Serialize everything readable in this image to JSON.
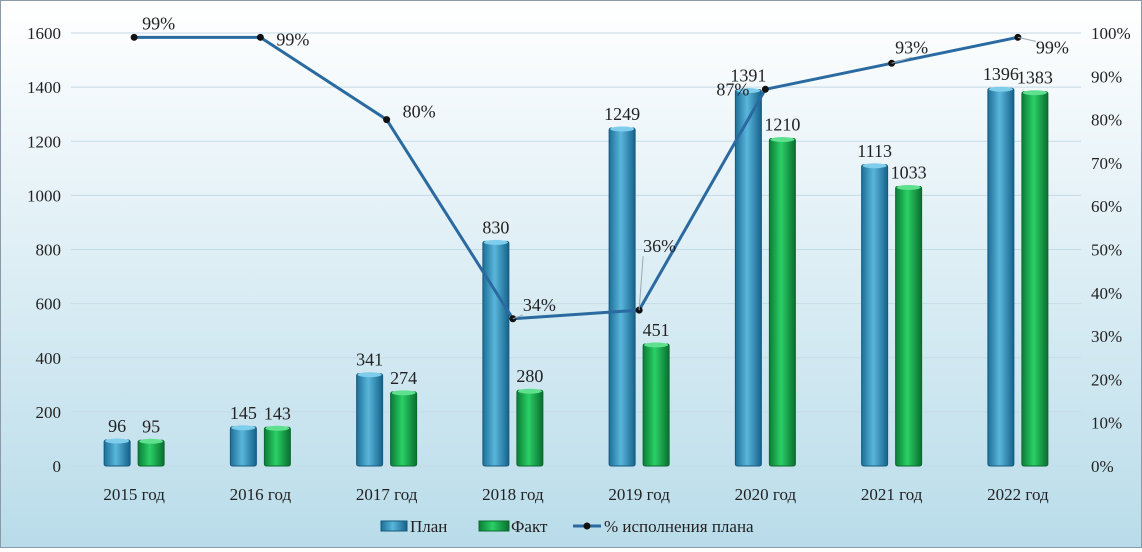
{
  "chart_data": {
    "type": "bar",
    "categories": [
      "2015 год",
      "2016 год",
      "2017 год",
      "2018 год",
      "2019 год",
      "2020 год",
      "2021 год",
      "2022 год"
    ],
    "series": [
      {
        "name": "План",
        "type": "bar",
        "color": "#3a9ac9",
        "values": [
          96,
          145,
          341,
          830,
          1249,
          1391,
          1113,
          1396
        ]
      },
      {
        "name": "Факт",
        "type": "bar",
        "color": "#1bb352",
        "values": [
          95,
          143,
          274,
          280,
          451,
          1210,
          1033,
          1383
        ]
      },
      {
        "name": "% исполнения плана",
        "type": "line",
        "axis": "right",
        "color": "#2a6aa0",
        "values": [
          99,
          99,
          80,
          34,
          36,
          87,
          93,
          99
        ]
      }
    ],
    "value_labels": {
      "plan": [
        "96",
        "145",
        "341",
        "830",
        "1249",
        "1391",
        "1113",
        "1396"
      ],
      "fact": [
        "95",
        "143",
        "274",
        "280",
        "451",
        "1210",
        "1033",
        "1383"
      ],
      "percent": [
        "99%",
        "99%",
        "80%",
        "34%",
        "36%",
        "87%",
        "93%",
        "99%"
      ]
    },
    "y_left": {
      "min": 0,
      "max": 1600,
      "ticks": [
        "0",
        "200",
        "400",
        "600",
        "800",
        "1000",
        "1200",
        "1400",
        "1600"
      ]
    },
    "y_right": {
      "min": 0,
      "max": 100,
      "ticks": [
        "0%",
        "10%",
        "20%",
        "30%",
        "40%",
        "50%",
        "60%",
        "70%",
        "80%",
        "90%",
        "100%"
      ]
    },
    "grid": true,
    "legend_position": "bottom",
    "legend": [
      "План",
      "Факт",
      "% исполнения плана"
    ],
    "background_gradient": [
      "#ffffff",
      "#b9dcea"
    ]
  }
}
